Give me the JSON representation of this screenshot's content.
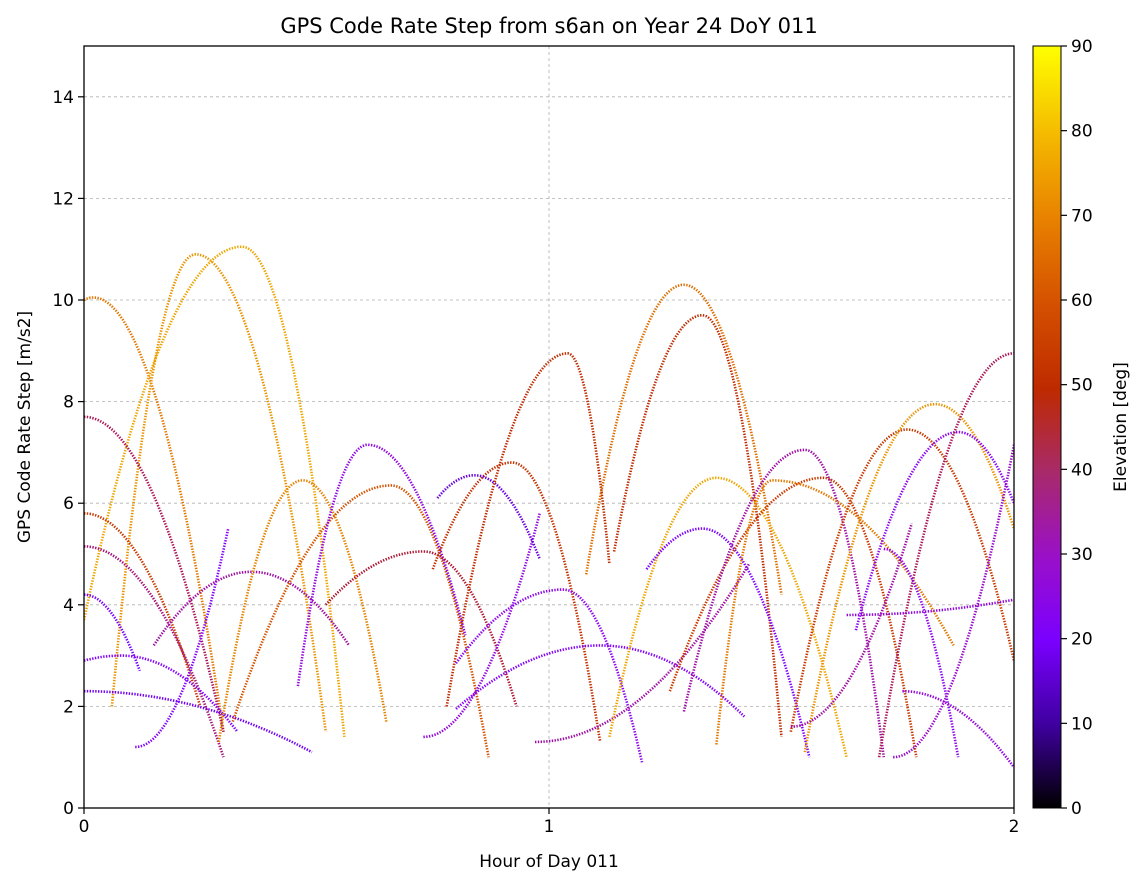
{
  "chart_data": {
    "type": "scatter",
    "title": "GPS Code Rate Step from s6an on Year 24 DoY 011",
    "xlabel": "Hour of Day 011",
    "ylabel": "GPS Code Rate Step [m/s2]",
    "xlim": [
      0,
      2
    ],
    "ylim": [
      0,
      15
    ],
    "xticks": [
      "0",
      "1",
      "2"
    ],
    "xtick_values": [
      0,
      1,
      2
    ],
    "yticks": [
      "0",
      "2",
      "4",
      "6",
      "8",
      "10",
      "12",
      "14"
    ],
    "ytick_values": [
      0,
      2,
      4,
      6,
      8,
      10,
      12,
      14
    ],
    "grid": true,
    "colorbar": {
      "label": "Elevation [deg]",
      "range": [
        0,
        90
      ],
      "ticks": [
        "0",
        "10",
        "20",
        "30",
        "40",
        "50",
        "60",
        "70",
        "80",
        "90"
      ],
      "tick_values": [
        0,
        10,
        20,
        30,
        40,
        50,
        60,
        70,
        80,
        90
      ],
      "colormap": "gnuplot"
    },
    "arcs": [
      {
        "x_start": 0.0,
        "x_end": 0.3,
        "x_peak": 0.02,
        "y_peak": 10.05,
        "y_start": 10.0,
        "y_end": 1.5,
        "elev_peak": 70
      },
      {
        "x_start": 0.06,
        "x_end": 0.52,
        "x_peak": 0.24,
        "y_peak": 10.9,
        "y_start": 2.0,
        "y_end": 1.5,
        "elev_peak": 75
      },
      {
        "x_start": 0.0,
        "x_end": 0.56,
        "x_peak": 0.34,
        "y_peak": 11.05,
        "y_start": 3.7,
        "y_end": 1.4,
        "elev_peak": 78
      },
      {
        "x_start": 0.0,
        "x_end": 0.3,
        "x_peak": 0.0,
        "y_peak": 7.7,
        "y_start": 7.7,
        "y_end": 1.5,
        "elev_peak": 40
      },
      {
        "x_start": 0.0,
        "x_end": 0.25,
        "x_peak": 0.0,
        "y_peak": 5.8,
        "y_start": 5.8,
        "y_end": 2.0,
        "elev_peak": 55
      },
      {
        "x_start": 0.0,
        "x_end": 0.3,
        "x_peak": 0.0,
        "y_peak": 5.15,
        "y_start": 5.15,
        "y_end": 1.0,
        "elev_peak": 38
      },
      {
        "x_start": 0.0,
        "x_end": 0.12,
        "x_peak": 0.0,
        "y_peak": 4.2,
        "y_start": 4.2,
        "y_end": 2.7,
        "elev_peak": 20
      },
      {
        "x_start": 0.0,
        "x_end": 0.33,
        "x_peak": 0.08,
        "y_peak": 3.0,
        "y_start": 2.9,
        "y_end": 1.5,
        "elev_peak": 25
      },
      {
        "x_start": 0.0,
        "x_end": 0.49,
        "x_peak": 0.0,
        "y_peak": 2.3,
        "y_start": 2.3,
        "y_end": 1.1,
        "elev_peak": 18
      },
      {
        "x_start": 0.11,
        "x_end": 0.31,
        "x_peak": 0.11,
        "y_peak": 1.2,
        "y_start": 1.2,
        "y_end": 5.5,
        "elev_peak": 25
      },
      {
        "x_start": 0.15,
        "x_end": 0.57,
        "x_peak": 0.36,
        "y_peak": 4.65,
        "y_start": 3.2,
        "y_end": 3.2,
        "elev_peak": 35
      },
      {
        "x_start": 0.29,
        "x_end": 0.65,
        "x_peak": 0.47,
        "y_peak": 6.45,
        "y_start": 1.3,
        "y_end": 1.7,
        "elev_peak": 72
      },
      {
        "x_start": 0.32,
        "x_end": 0.87,
        "x_peak": 0.66,
        "y_peak": 6.35,
        "y_start": 1.7,
        "y_end": 1.0,
        "elev_peak": 62
      },
      {
        "x_start": 0.46,
        "x_end": 0.82,
        "x_peak": 0.61,
        "y_peak": 7.15,
        "y_start": 2.4,
        "y_end": 3.4,
        "elev_peak": 30
      },
      {
        "x_start": 0.52,
        "x_end": 0.93,
        "x_peak": 0.73,
        "y_peak": 5.05,
        "y_start": 4.0,
        "y_end": 2.0,
        "elev_peak": 42
      },
      {
        "x_start": 0.73,
        "x_end": 0.98,
        "x_peak": 0.73,
        "y_peak": 1.4,
        "y_start": 1.4,
        "y_end": 5.8,
        "elev_peak": 30
      },
      {
        "x_start": 0.75,
        "x_end": 1.11,
        "x_peak": 0.92,
        "y_peak": 6.8,
        "y_start": 4.7,
        "y_end": 1.3,
        "elev_peak": 52
      },
      {
        "x_start": 0.76,
        "x_end": 0.98,
        "x_peak": 0.84,
        "y_peak": 6.55,
        "y_start": 6.1,
        "y_end": 4.9,
        "elev_peak": 15
      },
      {
        "x_start": 0.78,
        "x_end": 1.13,
        "x_peak": 1.04,
        "y_peak": 8.95,
        "y_start": 2.0,
        "y_end": 4.8,
        "elev_peak": 50
      },
      {
        "x_start": 0.8,
        "x_end": 1.2,
        "x_peak": 1.03,
        "y_peak": 4.3,
        "y_start": 2.85,
        "y_end": 0.9,
        "elev_peak": 28
      },
      {
        "x_start": 0.8,
        "x_end": 1.42,
        "x_peak": 1.11,
        "y_peak": 3.2,
        "y_start": 1.95,
        "y_end": 1.8,
        "elev_peak": 25
      },
      {
        "x_start": 0.97,
        "x_end": 1.43,
        "x_peak": 0.97,
        "y_peak": 1.3,
        "y_start": 1.3,
        "y_end": 4.8,
        "elev_peak": 35
      },
      {
        "x_start": 1.08,
        "x_end": 1.5,
        "x_peak": 1.29,
        "y_peak": 10.3,
        "y_start": 4.6,
        "y_end": 4.2,
        "elev_peak": 68
      },
      {
        "x_start": 1.14,
        "x_end": 1.5,
        "x_peak": 1.33,
        "y_peak": 9.7,
        "y_start": 5.05,
        "y_end": 1.4,
        "elev_peak": 50
      },
      {
        "x_start": 1.13,
        "x_end": 1.64,
        "x_peak": 1.36,
        "y_peak": 6.5,
        "y_start": 1.4,
        "y_end": 1.0,
        "elev_peak": 78
      },
      {
        "x_start": 1.21,
        "x_end": 1.56,
        "x_peak": 1.33,
        "y_peak": 5.5,
        "y_start": 4.7,
        "y_end": 1.0,
        "elev_peak": 22
      },
      {
        "x_start": 1.26,
        "x_end": 1.79,
        "x_peak": 1.59,
        "y_peak": 6.5,
        "y_start": 2.3,
        "y_end": 1.0,
        "elev_peak": 55
      },
      {
        "x_start": 1.29,
        "x_end": 1.72,
        "x_peak": 1.55,
        "y_peak": 7.05,
        "y_start": 1.9,
        "y_end": 1.0,
        "elev_peak": 35
      },
      {
        "x_start": 1.36,
        "x_end": 1.87,
        "x_peak": 1.48,
        "y_peak": 6.45,
        "y_start": 1.25,
        "y_end": 3.2,
        "elev_peak": 70
      },
      {
        "x_start": 1.52,
        "x_end": 2.0,
        "x_peak": 1.77,
        "y_peak": 7.45,
        "y_start": 1.5,
        "y_end": 2.9,
        "elev_peak": 55
      },
      {
        "x_start": 1.55,
        "x_end": 2.0,
        "x_peak": 1.83,
        "y_peak": 7.95,
        "y_start": 1.1,
        "y_end": 5.5,
        "elev_peak": 75
      },
      {
        "x_start": 1.66,
        "x_end": 2.0,
        "x_peak": 1.88,
        "y_peak": 7.4,
        "y_start": 3.5,
        "y_end": 6.0,
        "elev_peak": 28
      },
      {
        "x_start": 1.71,
        "x_end": 2.0,
        "x_peak": 2.0,
        "y_peak": 8.95,
        "y_start": 1.0,
        "y_end": 8.95,
        "elev_peak": 40
      },
      {
        "x_start": 1.72,
        "x_end": 1.88,
        "x_peak": 1.72,
        "y_peak": 5.1,
        "y_start": 5.1,
        "y_end": 1.0,
        "elev_peak": 28
      },
      {
        "x_start": 1.74,
        "x_end": 2.0,
        "x_peak": 1.74,
        "y_peak": 1.0,
        "y_start": 1.0,
        "y_end": 7.15,
        "elev_peak": 32
      },
      {
        "x_start": 1.76,
        "x_end": 2.0,
        "x_peak": 1.76,
        "y_peak": 2.3,
        "y_start": 2.3,
        "y_end": 0.8,
        "elev_peak": 30
      },
      {
        "x_start": 1.64,
        "x_end": 2.0,
        "x_peak": 1.64,
        "y_peak": 3.8,
        "y_start": 3.8,
        "y_end": 4.1,
        "elev_peak": 30
      },
      {
        "x_start": 1.52,
        "x_end": 1.78,
        "x_peak": 1.52,
        "y_peak": 1.6,
        "y_start": 1.6,
        "y_end": 5.6,
        "elev_peak": 35
      }
    ]
  }
}
